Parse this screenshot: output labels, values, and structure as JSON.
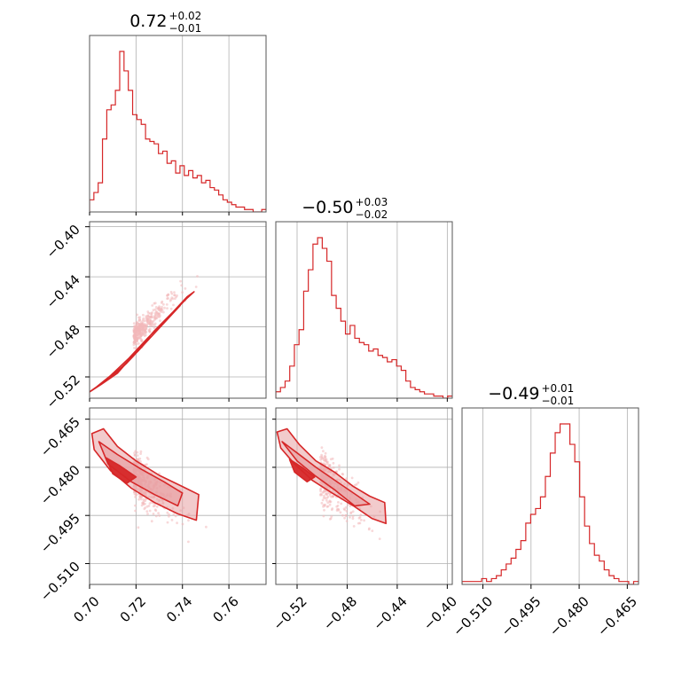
{
  "colors": {
    "line": "#d62728",
    "fill": "#e8a0a2",
    "fill_dark": "#d62728",
    "scatter": "#f2b8ba",
    "grid": "#b0b0b0",
    "frame": "#555555"
  },
  "chart_data": {
    "type": "corner",
    "parameters": [
      "",
      "",
      ""
    ],
    "titles": [
      {
        "median": "0.72",
        "plus": "+0.02",
        "minus": "−0.01"
      },
      {
        "median": "−0.50",
        "plus": "+0.03",
        "minus": "−0.02"
      },
      {
        "median": "−0.49",
        "plus": "+0.01",
        "minus": "−0.01"
      }
    ],
    "axis_ranges": [
      [
        0.7,
        0.776
      ],
      [
        -0.537,
        -0.396
      ],
      [
        -0.5165,
        -0.4615
      ]
    ],
    "ticks": [
      {
        "values": [
          0.7,
          0.72,
          0.74,
          0.76
        ],
        "labels": [
          "0.70",
          "0.72",
          "0.74",
          "0.76"
        ]
      },
      {
        "values": [
          -0.52,
          -0.48,
          -0.44,
          -0.4
        ],
        "labels": [
          "−0.52",
          "−0.48",
          "−0.44",
          "−0.40"
        ]
      },
      {
        "values": [
          -0.51,
          -0.495,
          -0.48,
          -0.465
        ],
        "labels": [
          "−0.510",
          "−0.495",
          "−0.480",
          "−0.465"
        ]
      }
    ],
    "hist1d": [
      [
        5,
        8,
        12,
        30,
        42,
        44,
        50,
        66,
        58,
        50,
        40,
        38,
        36,
        30,
        29,
        28,
        24,
        25,
        20,
        21,
        16,
        19,
        15,
        17,
        14,
        15,
        12,
        13,
        10,
        9,
        7,
        5,
        4,
        3,
        2,
        2,
        1,
        1,
        0,
        0,
        1
      ],
      [
        3,
        5,
        8,
        15,
        25,
        32,
        50,
        60,
        72,
        75,
        70,
        64,
        48,
        42,
        36,
        30,
        34,
        28,
        26,
        25,
        22,
        23,
        20,
        19,
        17,
        18,
        15,
        13,
        8,
        5,
        4,
        3,
        2,
        2,
        1,
        1,
        0,
        1
      ],
      [
        1,
        1,
        1,
        1,
        2,
        1,
        2,
        3,
        5,
        7,
        9,
        12,
        15,
        21,
        24,
        26,
        30,
        37,
        45,
        52,
        55,
        55,
        48,
        42,
        30,
        20,
        14,
        10,
        8,
        5,
        3,
        2,
        1,
        1,
        0,
        1
      ]
    ],
    "corr_2d": {
      "1_0": 0.97,
      "2_0": -0.85,
      "2_1": -0.85
    },
    "contours": {
      "1_0": [
        [
          [
            0.7,
            -0.532
          ],
          [
            0.705,
            -0.526
          ],
          [
            0.712,
            -0.517
          ],
          [
            0.72,
            -0.5
          ],
          [
            0.728,
            -0.483
          ],
          [
            0.736,
            -0.468
          ],
          [
            0.742,
            -0.456
          ],
          [
            0.745,
            -0.452
          ],
          [
            0.742,
            -0.457
          ],
          [
            0.733,
            -0.474
          ],
          [
            0.725,
            -0.489
          ],
          [
            0.717,
            -0.505
          ],
          [
            0.709,
            -0.519
          ],
          [
            0.703,
            -0.528
          ]
        ],
        [
          [
            0.704,
            -0.527
          ],
          [
            0.711,
            -0.518
          ],
          [
            0.719,
            -0.503
          ],
          [
            0.727,
            -0.487
          ],
          [
            0.734,
            -0.473
          ],
          [
            0.739,
            -0.463
          ],
          [
            0.736,
            -0.469
          ],
          [
            0.729,
            -0.483
          ],
          [
            0.721,
            -0.499
          ],
          [
            0.713,
            -0.514
          ],
          [
            0.706,
            -0.524
          ]
        ],
        [
          [
            0.708,
            -0.521
          ],
          [
            0.714,
            -0.512
          ],
          [
            0.721,
            -0.499
          ],
          [
            0.726,
            -0.488
          ],
          [
            0.722,
            -0.497
          ],
          [
            0.716,
            -0.509
          ],
          [
            0.71,
            -0.519
          ]
        ]
      ],
      "2_0": [
        [
          [
            0.701,
            -0.4695
          ],
          [
            0.706,
            -0.468
          ],
          [
            0.712,
            -0.4735
          ],
          [
            0.72,
            -0.478
          ],
          [
            0.73,
            -0.4825
          ],
          [
            0.74,
            -0.486
          ],
          [
            0.747,
            -0.4885
          ],
          [
            0.746,
            -0.4965
          ],
          [
            0.738,
            -0.4945
          ],
          [
            0.728,
            -0.491
          ],
          [
            0.718,
            -0.4865
          ],
          [
            0.709,
            -0.481
          ],
          [
            0.702,
            -0.4745
          ]
        ],
        [
          [
            0.704,
            -0.472
          ],
          [
            0.712,
            -0.476
          ],
          [
            0.722,
            -0.4805
          ],
          [
            0.732,
            -0.4845
          ],
          [
            0.74,
            -0.488
          ],
          [
            0.738,
            -0.492
          ],
          [
            0.728,
            -0.4885
          ],
          [
            0.718,
            -0.4845
          ],
          [
            0.708,
            -0.479
          ]
        ],
        [
          [
            0.707,
            -0.477
          ],
          [
            0.713,
            -0.4795
          ],
          [
            0.72,
            -0.483
          ],
          [
            0.716,
            -0.485
          ],
          [
            0.71,
            -0.482
          ]
        ]
      ],
      "2_1": [
        [
          [
            -0.536,
            -0.469
          ],
          [
            -0.528,
            -0.468
          ],
          [
            -0.518,
            -0.473
          ],
          [
            -0.505,
            -0.478
          ],
          [
            -0.49,
            -0.4815
          ],
          [
            -0.475,
            -0.486
          ],
          [
            -0.462,
            -0.489
          ],
          [
            -0.45,
            -0.491
          ],
          [
            -0.449,
            -0.4975
          ],
          [
            -0.46,
            -0.496
          ],
          [
            -0.475,
            -0.492
          ],
          [
            -0.492,
            -0.488
          ],
          [
            -0.508,
            -0.484
          ],
          [
            -0.522,
            -0.479
          ],
          [
            -0.533,
            -0.474
          ]
        ],
        [
          [
            -0.532,
            -0.472
          ],
          [
            -0.52,
            -0.4755
          ],
          [
            -0.505,
            -0.48
          ],
          [
            -0.49,
            -0.484
          ],
          [
            -0.475,
            -0.488
          ],
          [
            -0.462,
            -0.4915
          ],
          [
            -0.474,
            -0.492
          ],
          [
            -0.49,
            -0.487
          ],
          [
            -0.506,
            -0.4825
          ],
          [
            -0.52,
            -0.478
          ]
        ],
        [
          [
            -0.526,
            -0.4775
          ],
          [
            -0.516,
            -0.48
          ],
          [
            -0.506,
            -0.483
          ],
          [
            -0.512,
            -0.4845
          ],
          [
            -0.522,
            -0.4815
          ]
        ]
      ]
    }
  }
}
